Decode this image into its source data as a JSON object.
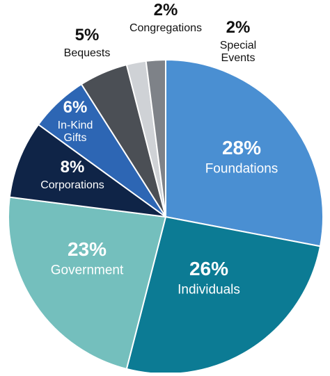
{
  "chart_data": {
    "type": "pie",
    "title": "",
    "start_angle_deg": 0,
    "direction": "clockwise",
    "slices": [
      {
        "label": "Foundations",
        "value": 28,
        "value_label": "28%",
        "color": "#4a8fd2",
        "label_color": "#ffffff"
      },
      {
        "label": "Individuals",
        "value": 26,
        "value_label": "26%",
        "color": "#0c7b94",
        "label_color": "#ffffff"
      },
      {
        "label": "Government",
        "value": 23,
        "value_label": "23%",
        "color": "#74bfbd",
        "label_color": "#ffffff"
      },
      {
        "label": "Corporations",
        "value": 8,
        "value_label": "8%",
        "color": "#0f2447",
        "label_color": "#ffffff"
      },
      {
        "label": "In-Kind Gifts",
        "value": 6,
        "value_label": "6%",
        "color": "#2d66b4",
        "label_color": "#ffffff"
      },
      {
        "label": "Bequests",
        "value": 5,
        "value_label": "5%",
        "color": "#4b4f55",
        "label_color": "#111111"
      },
      {
        "label": "Congregations",
        "value": 2,
        "value_label": "2%",
        "color": "#cfd2d6",
        "label_color": "#111111"
      },
      {
        "label": "Special Events",
        "value": 2,
        "value_label": "2%",
        "color": "#7e8288",
        "label_color": "#111111"
      }
    ]
  }
}
